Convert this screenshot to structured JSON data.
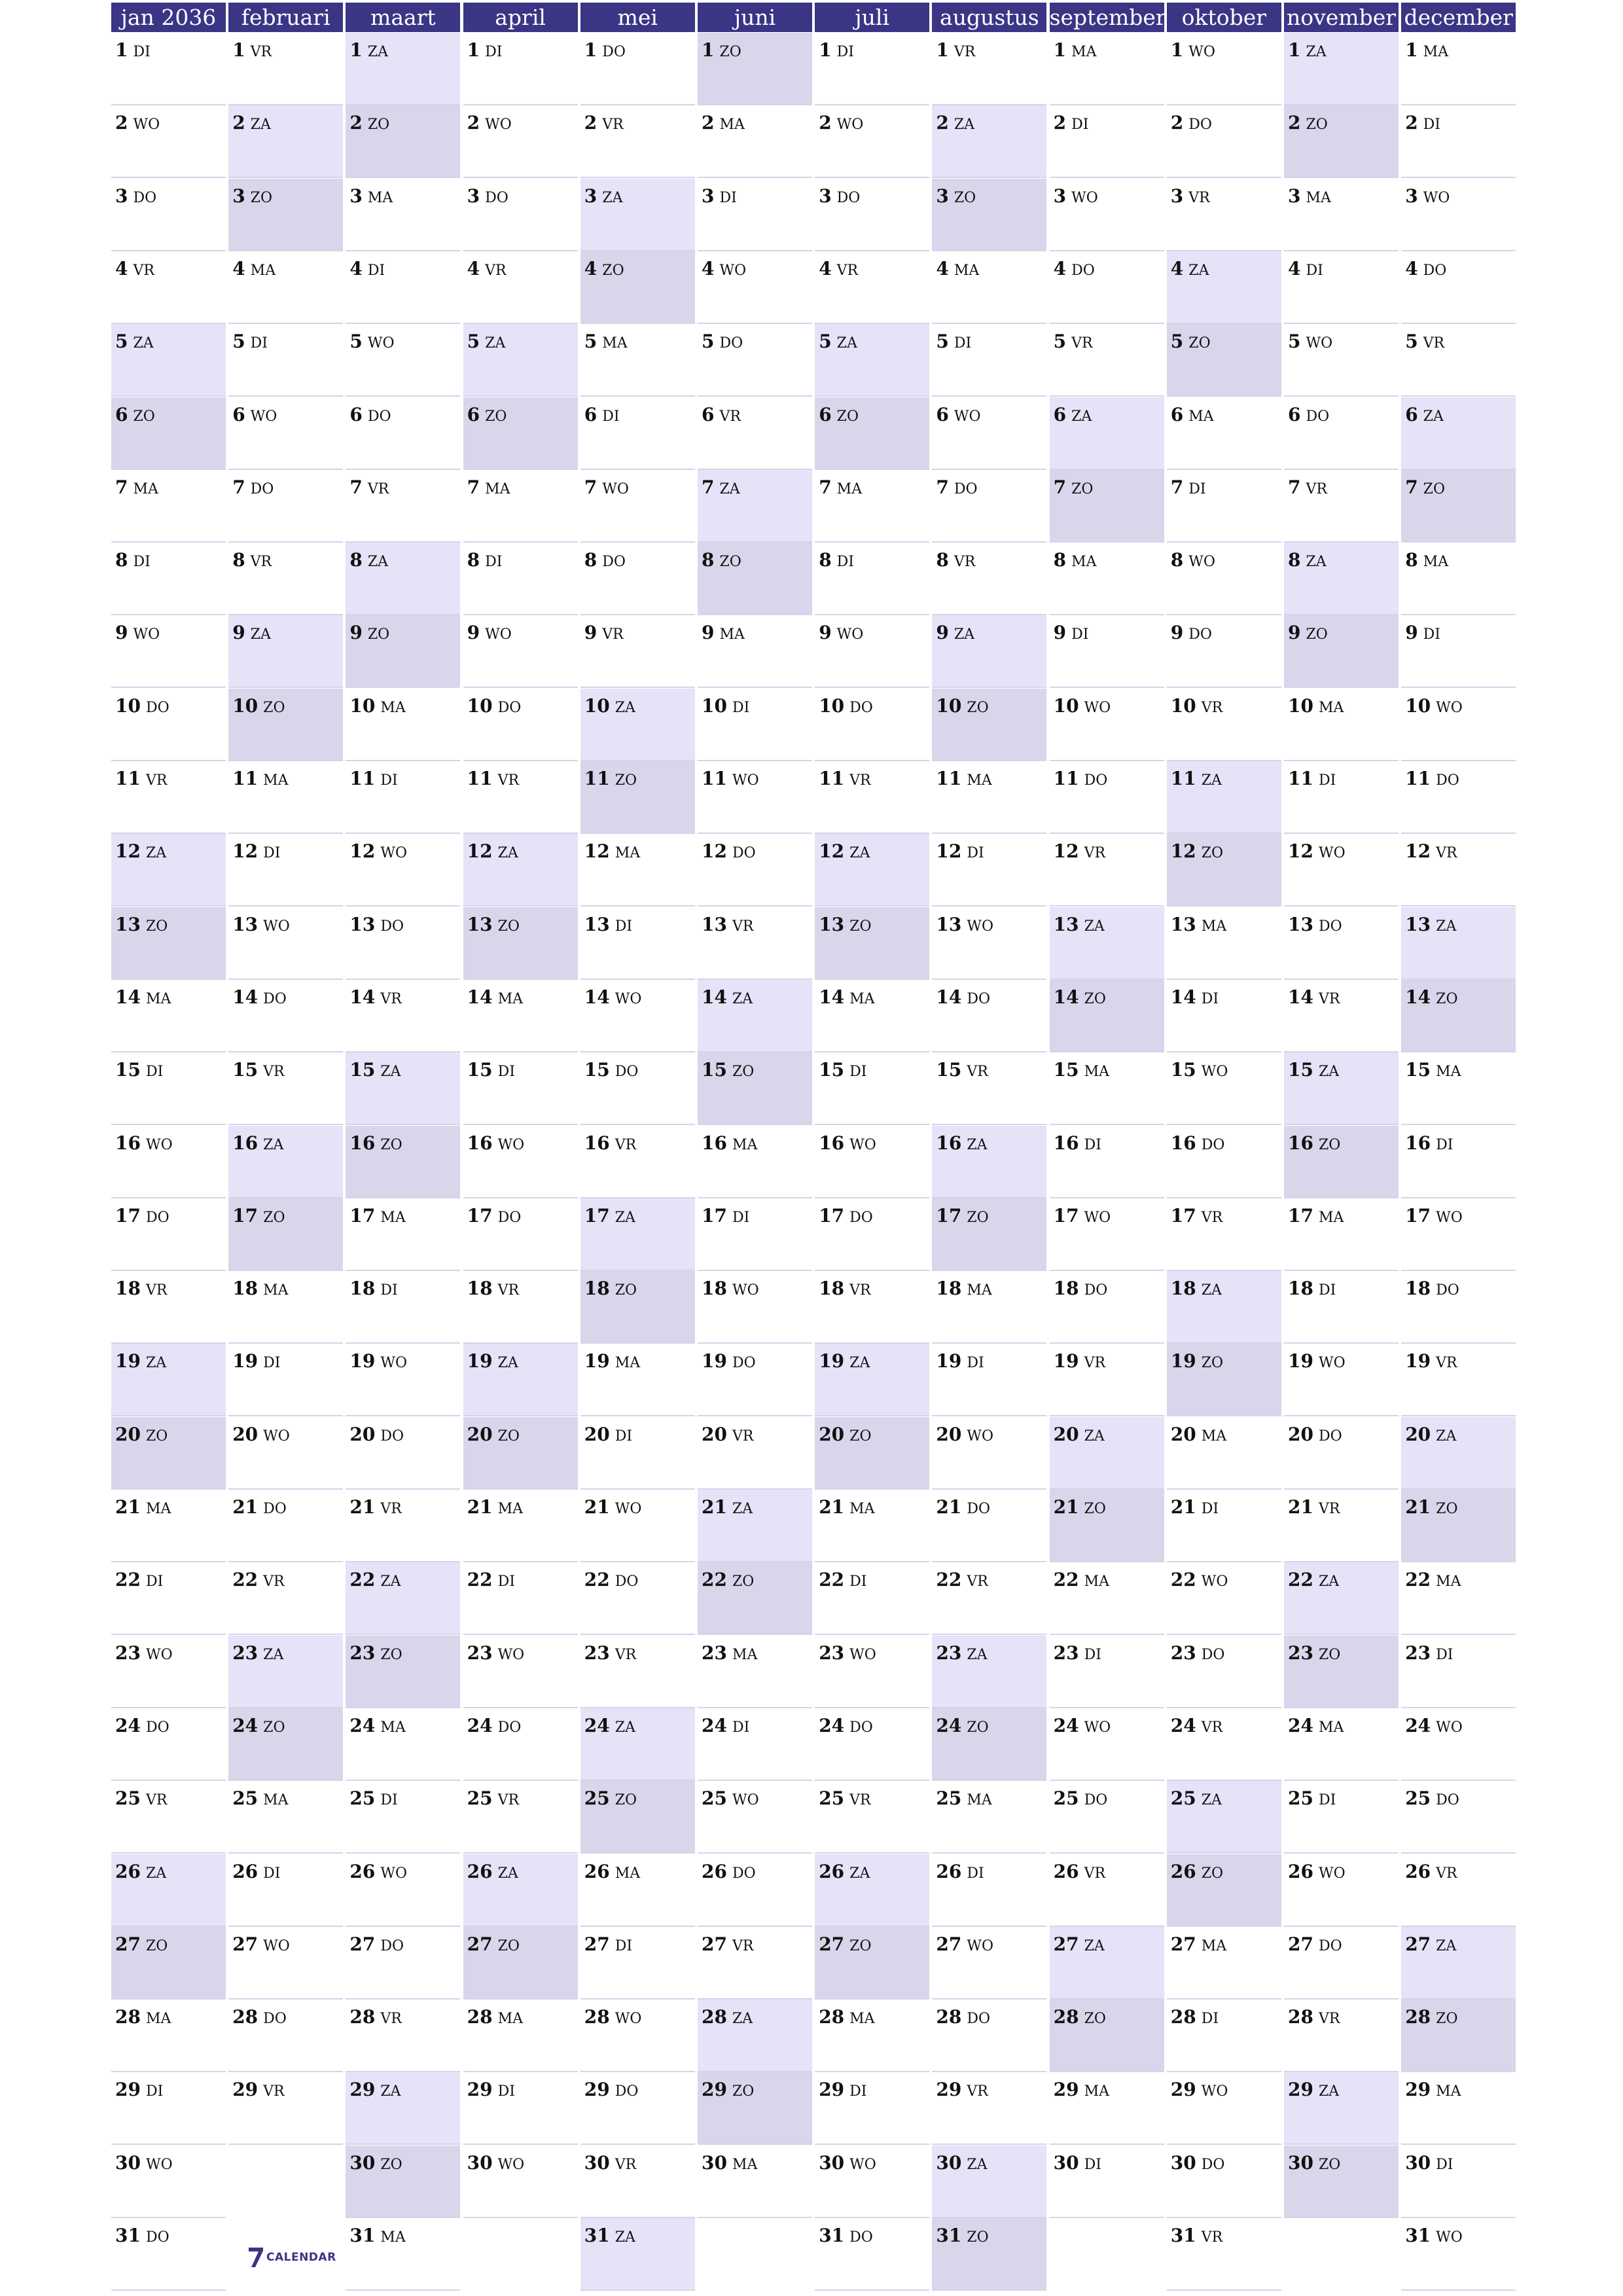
{
  "months": [
    {
      "label": "jan 2036",
      "days": [
        "DI",
        "WO",
        "DO",
        "VR",
        "ZA",
        "ZO",
        "MA",
        "DI",
        "WO",
        "DO",
        "VR",
        "ZA",
        "ZO",
        "MA",
        "DI",
        "WO",
        "DO",
        "VR",
        "ZA",
        "ZO",
        "MA",
        "DI",
        "WO",
        "DO",
        "VR",
        "ZA",
        "ZO",
        "MA",
        "DI",
        "WO",
        "DO"
      ]
    },
    {
      "label": "februari",
      "days": [
        "VR",
        "ZA",
        "ZO",
        "MA",
        "DI",
        "WO",
        "DO",
        "VR",
        "ZA",
        "ZO",
        "MA",
        "DI",
        "WO",
        "DO",
        "VR",
        "ZA",
        "ZO",
        "MA",
        "DI",
        "WO",
        "DO",
        "VR",
        "ZA",
        "ZO",
        "MA",
        "DI",
        "WO",
        "DO",
        "VR"
      ]
    },
    {
      "label": "maart",
      "days": [
        "ZA",
        "ZO",
        "MA",
        "DI",
        "WO",
        "DO",
        "VR",
        "ZA",
        "ZO",
        "MA",
        "DI",
        "WO",
        "DO",
        "VR",
        "ZA",
        "ZO",
        "MA",
        "DI",
        "WO",
        "DO",
        "VR",
        "ZA",
        "ZO",
        "MA",
        "DI",
        "WO",
        "DO",
        "VR",
        "ZA",
        "ZO",
        "MA"
      ]
    },
    {
      "label": "april",
      "days": [
        "DI",
        "WO",
        "DO",
        "VR",
        "ZA",
        "ZO",
        "MA",
        "DI",
        "WO",
        "DO",
        "VR",
        "ZA",
        "ZO",
        "MA",
        "DI",
        "WO",
        "DO",
        "VR",
        "ZA",
        "ZO",
        "MA",
        "DI",
        "WO",
        "DO",
        "VR",
        "ZA",
        "ZO",
        "MA",
        "DI",
        "WO"
      ]
    },
    {
      "label": "mei",
      "days": [
        "DO",
        "VR",
        "ZA",
        "ZO",
        "MA",
        "DI",
        "WO",
        "DO",
        "VR",
        "ZA",
        "ZO",
        "MA",
        "DI",
        "WO",
        "DO",
        "VR",
        "ZA",
        "ZO",
        "MA",
        "DI",
        "WO",
        "DO",
        "VR",
        "ZA",
        "ZO",
        "MA",
        "DI",
        "WO",
        "DO",
        "VR",
        "ZA"
      ]
    },
    {
      "label": "juni",
      "days": [
        "ZO",
        "MA",
        "DI",
        "WO",
        "DO",
        "VR",
        "ZA",
        "ZO",
        "MA",
        "DI",
        "WO",
        "DO",
        "VR",
        "ZA",
        "ZO",
        "MA",
        "DI",
        "WO",
        "DO",
        "VR",
        "ZA",
        "ZO",
        "MA",
        "DI",
        "WO",
        "DO",
        "VR",
        "ZA",
        "ZO",
        "MA"
      ]
    },
    {
      "label": "juli",
      "days": [
        "DI",
        "WO",
        "DO",
        "VR",
        "ZA",
        "ZO",
        "MA",
        "DI",
        "WO",
        "DO",
        "VR",
        "ZA",
        "ZO",
        "MA",
        "DI",
        "WO",
        "DO",
        "VR",
        "ZA",
        "ZO",
        "MA",
        "DI",
        "WO",
        "DO",
        "VR",
        "ZA",
        "ZO",
        "MA",
        "DI",
        "WO",
        "DO"
      ]
    },
    {
      "label": "augustus",
      "days": [
        "VR",
        "ZA",
        "ZO",
        "MA",
        "DI",
        "WO",
        "DO",
        "VR",
        "ZA",
        "ZO",
        "MA",
        "DI",
        "WO",
        "DO",
        "VR",
        "ZA",
        "ZO",
        "MA",
        "DI",
        "WO",
        "DO",
        "VR",
        "ZA",
        "ZO",
        "MA",
        "DI",
        "WO",
        "DO",
        "VR",
        "ZA",
        "ZO"
      ]
    },
    {
      "label": "september",
      "days": [
        "MA",
        "DI",
        "WO",
        "DO",
        "VR",
        "ZA",
        "ZO",
        "MA",
        "DI",
        "WO",
        "DO",
        "VR",
        "ZA",
        "ZO",
        "MA",
        "DI",
        "WO",
        "DO",
        "VR",
        "ZA",
        "ZO",
        "MA",
        "DI",
        "WO",
        "DO",
        "VR",
        "ZA",
        "ZO",
        "MA",
        "DI"
      ]
    },
    {
      "label": "oktober",
      "days": [
        "WO",
        "DO",
        "VR",
        "ZA",
        "ZO",
        "MA",
        "DI",
        "WO",
        "DO",
        "VR",
        "ZA",
        "ZO",
        "MA",
        "DI",
        "WO",
        "DO",
        "VR",
        "ZA",
        "ZO",
        "MA",
        "DI",
        "WO",
        "DO",
        "VR",
        "ZA",
        "ZO",
        "MA",
        "DI",
        "WO",
        "DO",
        "VR"
      ]
    },
    {
      "label": "november",
      "days": [
        "ZA",
        "ZO",
        "MA",
        "DI",
        "WO",
        "DO",
        "VR",
        "ZA",
        "ZO",
        "MA",
        "DI",
        "WO",
        "DO",
        "VR",
        "ZA",
        "ZO",
        "MA",
        "DI",
        "WO",
        "DO",
        "VR",
        "ZA",
        "ZO",
        "MA",
        "DI",
        "WO",
        "DO",
        "VR",
        "ZA",
        "ZO"
      ]
    },
    {
      "label": "december",
      "days": [
        "MA",
        "DI",
        "WO",
        "DO",
        "VR",
        "ZA",
        "ZO",
        "MA",
        "DI",
        "WO",
        "DO",
        "VR",
        "ZA",
        "ZO",
        "MA",
        "DI",
        "WO",
        "DO",
        "VR",
        "ZA",
        "ZO",
        "MA",
        "DI",
        "WO",
        "DO",
        "VR",
        "ZA",
        "ZO",
        "MA",
        "DI",
        "WO"
      ]
    }
  ],
  "logo": {
    "text": "CALENDAR",
    "icon": "seven-logo-icon"
  },
  "colors": {
    "header": "#3a3585",
    "saturday": "#e4e3f7",
    "sunday": "#d9d6eb",
    "divider": "#d6d3ea"
  }
}
